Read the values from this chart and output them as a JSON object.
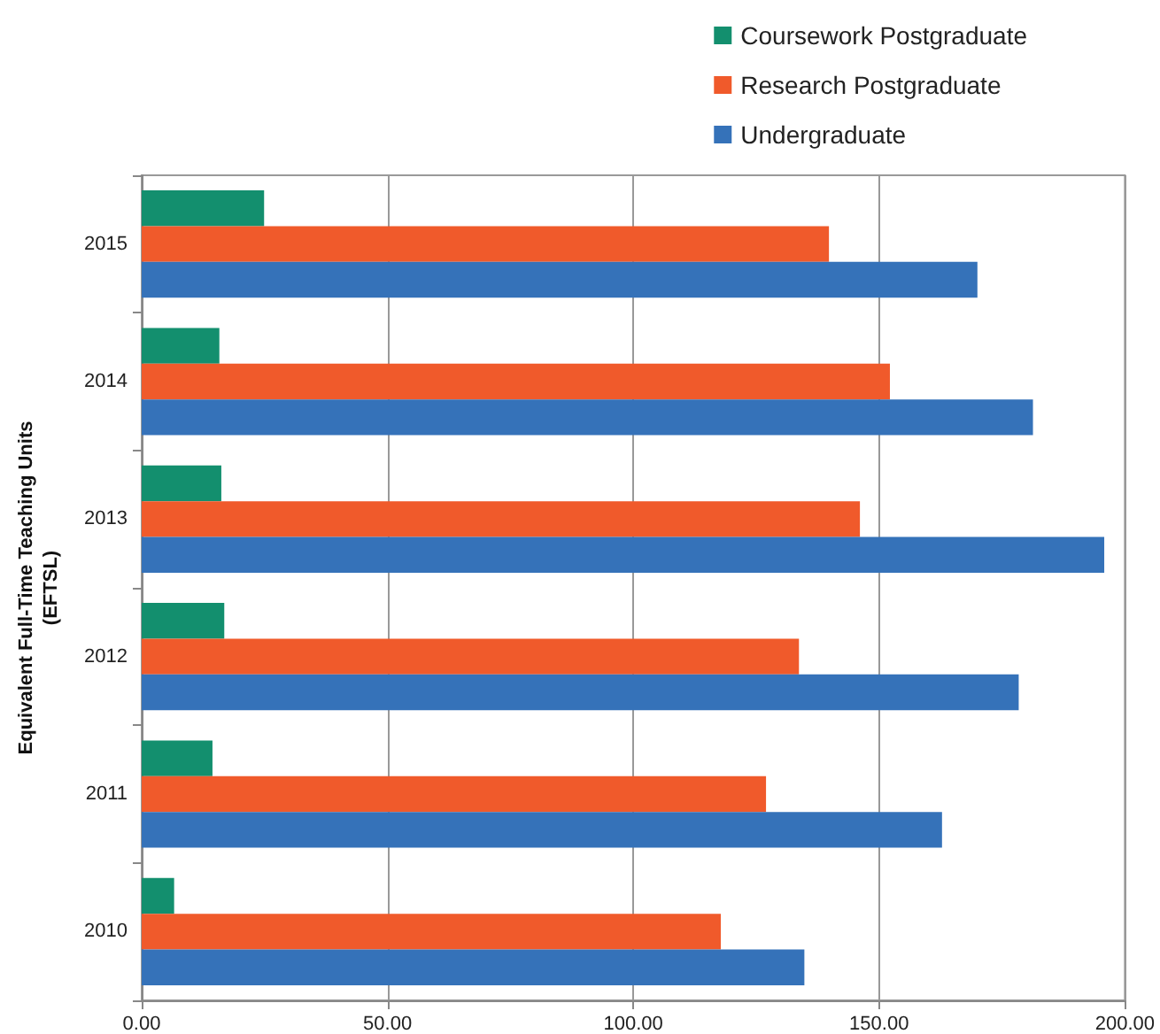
{
  "chart_data": {
    "type": "bar",
    "orientation": "horizontal",
    "ylabel": "Equivalent Full-Time Teaching Units\n(EFTSL)",
    "categories": [
      "2015",
      "2014",
      "2013",
      "2012",
      "2011",
      "2010"
    ],
    "series": [
      {
        "name": "Coursework Postgraduate",
        "color": "#138f6e",
        "values": [
          24.9,
          15.8,
          16.2,
          16.8,
          14.4,
          6.6
        ]
      },
      {
        "name": "Research Postgraduate",
        "color": "#f05a2b",
        "values": [
          139.8,
          152.2,
          146.1,
          133.7,
          127.0,
          117.8
        ]
      },
      {
        "name": "Undergraduate",
        "color": "#3572b9",
        "values": [
          170.0,
          181.3,
          195.8,
          178.4,
          162.8,
          134.8
        ]
      }
    ],
    "xlim": [
      0,
      200
    ],
    "xticks": [
      {
        "value": 0,
        "label": "0.00"
      },
      {
        "value": 50,
        "label": "50.00"
      },
      {
        "value": 100,
        "label": "100.00"
      },
      {
        "value": 150,
        "label": "150.00"
      },
      {
        "value": 200,
        "label": "200.00"
      }
    ],
    "grid": "x",
    "legend": "top right"
  }
}
